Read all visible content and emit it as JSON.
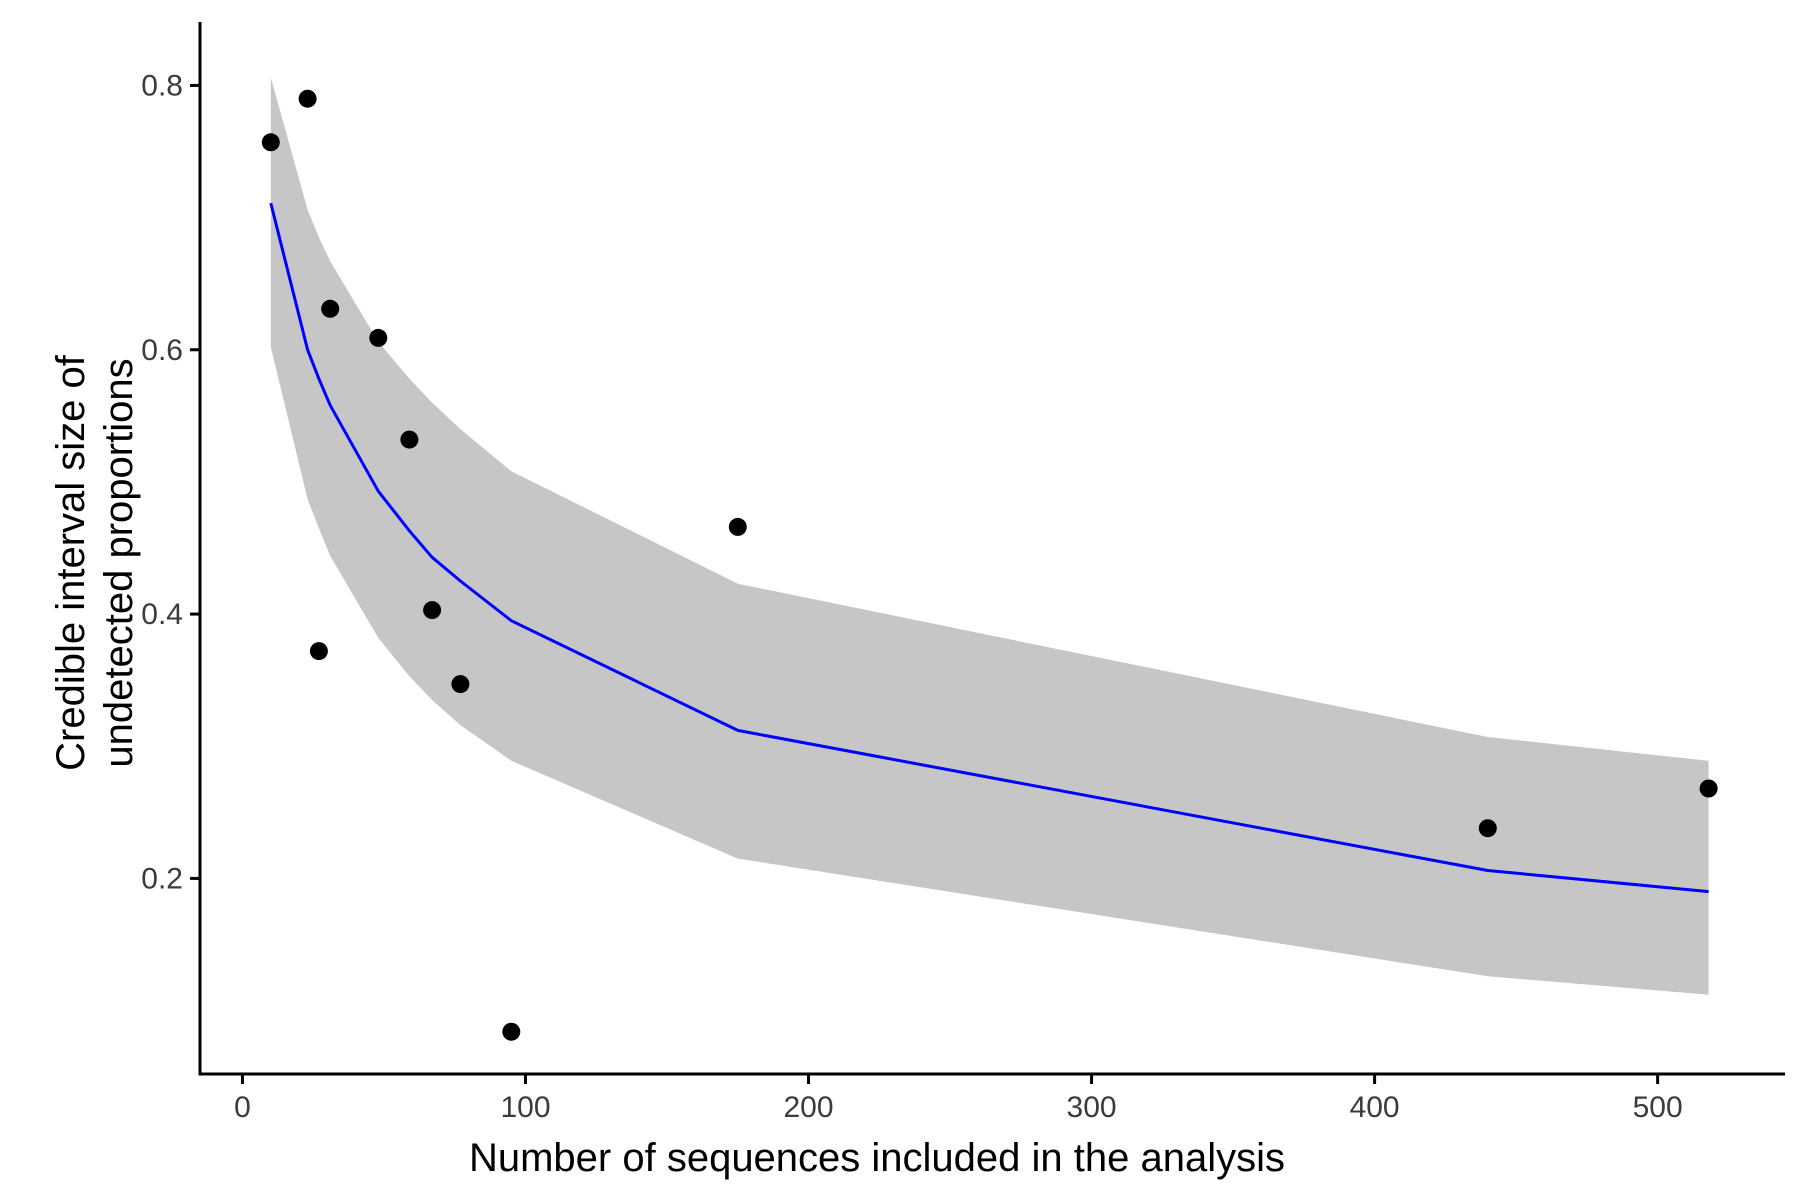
{
  "chart_data": {
    "type": "scatter",
    "xlabel": "Number of sequences included in the analysis",
    "ylabel_lines": [
      "Credible interval size of",
      "undetected proportions"
    ],
    "xlim": [
      -15,
      545
    ],
    "ylim": [
      0.052,
      0.848
    ],
    "x_ticks": [
      0,
      100,
      200,
      300,
      400,
      500
    ],
    "x_tick_labels": [
      "0",
      "100",
      "200",
      "300",
      "400",
      "500"
    ],
    "y_ticks": [
      0.2,
      0.4,
      0.6,
      0.8
    ],
    "y_tick_labels": [
      "0.2",
      "0.4",
      "0.6",
      "0.8"
    ],
    "grid": false,
    "legend": "none",
    "colors": {
      "points": "#000000",
      "fit_line": "#0000ff",
      "ribbon": "#c6c6c6",
      "axis": "#000000",
      "tick_text": "#3b3b3b"
    },
    "points": [
      {
        "x": 10,
        "y": 0.757
      },
      {
        "x": 23,
        "y": 0.79
      },
      {
        "x": 27,
        "y": 0.372
      },
      {
        "x": 31,
        "y": 0.631
      },
      {
        "x": 48,
        "y": 0.609
      },
      {
        "x": 59,
        "y": 0.532
      },
      {
        "x": 67,
        "y": 0.403
      },
      {
        "x": 77,
        "y": 0.347
      },
      {
        "x": 95,
        "y": 0.084
      },
      {
        "x": 175,
        "y": 0.466
      },
      {
        "x": 440,
        "y": 0.238
      },
      {
        "x": 518,
        "y": 0.268
      }
    ],
    "fit": [
      {
        "x": 10,
        "y": 0.711,
        "lower": 0.602,
        "upper": 0.806
      },
      {
        "x": 23,
        "y": 0.6,
        "lower": 0.487,
        "upper": 0.706
      },
      {
        "x": 27,
        "y": 0.578,
        "lower": 0.465,
        "upper": 0.685
      },
      {
        "x": 31,
        "y": 0.558,
        "lower": 0.444,
        "upper": 0.667
      },
      {
        "x": 48,
        "y": 0.493,
        "lower": 0.382,
        "upper": 0.606
      },
      {
        "x": 59,
        "y": 0.463,
        "lower": 0.353,
        "upper": 0.578
      },
      {
        "x": 67,
        "y": 0.443,
        "lower": 0.335,
        "upper": 0.56
      },
      {
        "x": 77,
        "y": 0.425,
        "lower": 0.316,
        "upper": 0.54
      },
      {
        "x": 95,
        "y": 0.395,
        "lower": 0.289,
        "upper": 0.508
      },
      {
        "x": 175,
        "y": 0.312,
        "lower": 0.215,
        "upper": 0.423
      },
      {
        "x": 440,
        "y": 0.206,
        "lower": 0.126,
        "upper": 0.307
      },
      {
        "x": 518,
        "y": 0.19,
        "lower": 0.112,
        "upper": 0.289
      }
    ]
  }
}
